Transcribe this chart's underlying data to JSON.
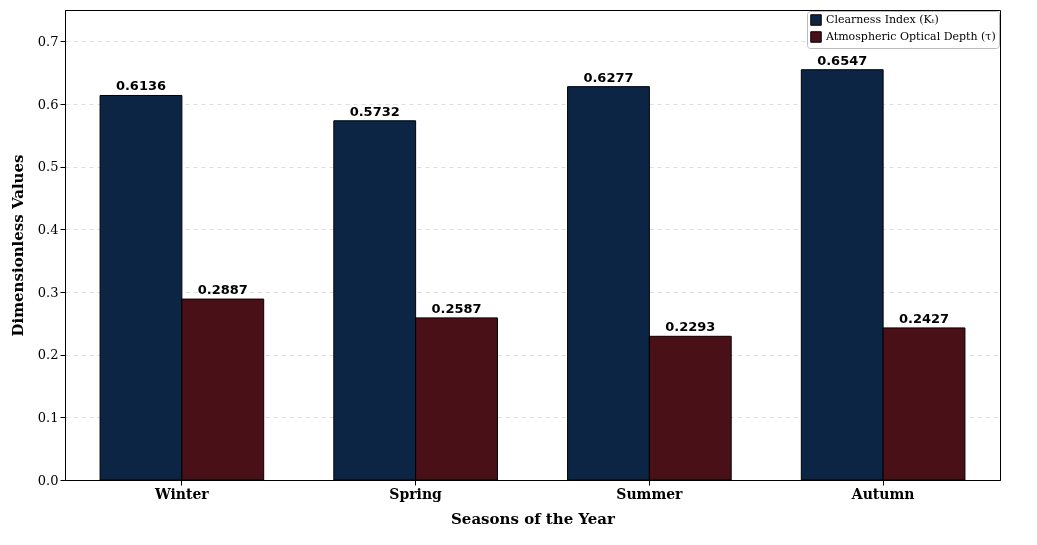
{
  "chart_data": {
    "type": "bar",
    "xlabel": "Seasons of the Year",
    "ylabel": "Dimensionless Values",
    "categories": [
      "Winter",
      "Spring",
      "Summer",
      "Autumn"
    ],
    "series": [
      {
        "name": "Clearness Index (Kₜ)",
        "color": "#0c2545",
        "values": [
          0.6136,
          0.5732,
          0.6277,
          0.6547
        ]
      },
      {
        "name": "Atmospheric Optical Depth (τ)",
        "color": "#4a1018",
        "values": [
          0.2887,
          0.2587,
          0.2293,
          0.2427
        ]
      }
    ],
    "ylim": [
      0,
      0.75
    ],
    "yticks": [
      {
        "value": 0,
        "label": "0.0"
      },
      0.1,
      0.2,
      0.3,
      0.4,
      0.5,
      0.6,
      0.7
    ],
    "grid": "y",
    "legend": "top right",
    "data_labels": true
  }
}
